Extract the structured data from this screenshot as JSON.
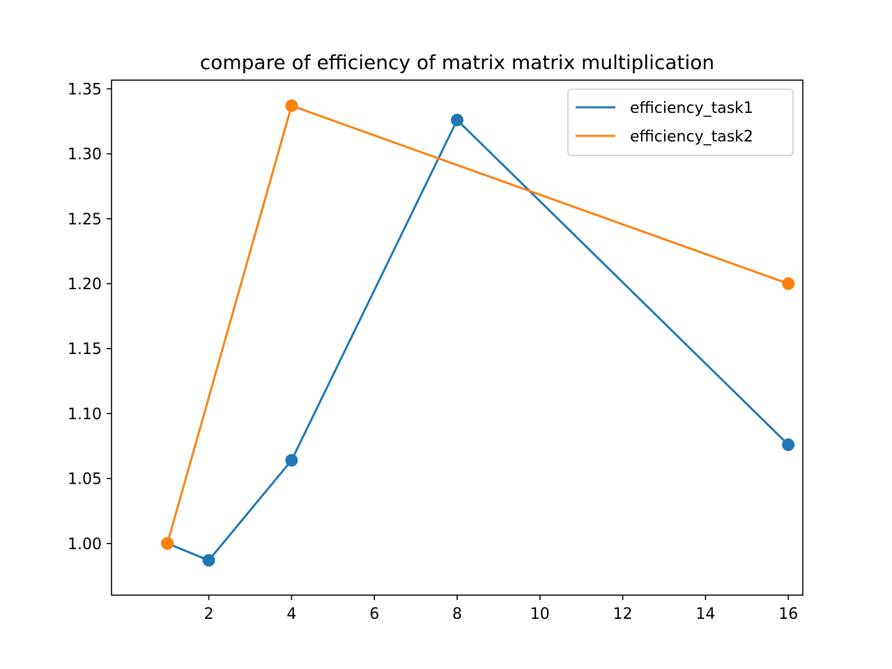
{
  "chart_data": {
    "type": "line",
    "title": "compare of efficiency of matrix matrix multiplication",
    "xlabel": "",
    "ylabel": "",
    "xlim": [
      -0.35,
      16.35
    ],
    "ylim": [
      0.9602,
      1.3567
    ],
    "xticks": [
      2,
      4,
      6,
      8,
      10,
      12,
      14,
      16
    ],
    "xtick_labels": [
      "2",
      "4",
      "6",
      "8",
      "10",
      "12",
      "14",
      "16"
    ],
    "yticks": [
      1.0,
      1.05,
      1.1,
      1.15,
      1.2,
      1.25,
      1.3,
      1.35
    ],
    "ytick_labels": [
      "1.00",
      "1.05",
      "1.10",
      "1.15",
      "1.20",
      "1.25",
      "1.30",
      "1.35"
    ],
    "grid": false,
    "legend_position": "top-right",
    "series": [
      {
        "name": "efficiency_task1",
        "color": "#1f77b4",
        "marker": "circle",
        "x": [
          1,
          2,
          4,
          8,
          16
        ],
        "y": [
          1.0,
          0.987,
          1.064,
          1.326,
          1.076
        ]
      },
      {
        "name": "efficiency_task2",
        "color": "#ff7f0e",
        "marker": "circle",
        "x": [
          1,
          4,
          16
        ],
        "y": [
          1.0,
          1.337,
          1.2
        ]
      }
    ]
  }
}
